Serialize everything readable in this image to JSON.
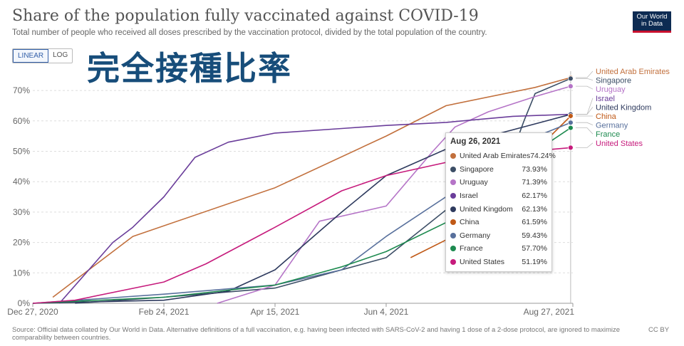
{
  "header": {
    "title": "Share of the population fully vaccinated against COVID-19",
    "subtitle": "Total number of people who received all doses prescribed by the vaccination protocol, divided by the total population of the country."
  },
  "logo": {
    "line1": "Our World",
    "line2": "in Data"
  },
  "controls": {
    "linear_label": "LINEAR",
    "log_label": "LOG",
    "active": "LINEAR"
  },
  "overlay_text": "完全接種比率",
  "footer": {
    "source": "Source: Official data collated by Our World in Data. Alternative definitions of a full vaccination, e.g. having been infected with SARS-CoV-2 and having 1 dose of a 2-dose protocol, are ignored to maximize comparability between countries.",
    "license": "CC BY"
  },
  "tooltip": {
    "date": "Aug 26, 2021",
    "rows": [
      {
        "name": "United Arab Emirates",
        "value": "74.24%",
        "color": "#c2703d"
      },
      {
        "name": "Singapore",
        "value": "73.93%",
        "color": "#3c4e66"
      },
      {
        "name": "Uruguay",
        "value": "71.39%",
        "color": "#b574c7"
      },
      {
        "name": "Israel",
        "value": "62.17%",
        "color": "#6a3d9a"
      },
      {
        "name": "United Kingdom",
        "value": "62.13%",
        "color": "#2e3a5e"
      },
      {
        "name": "China",
        "value": "61.59%",
        "color": "#c05917"
      },
      {
        "name": "Germany",
        "value": "59.43%",
        "color": "#58709c"
      },
      {
        "name": "France",
        "value": "57.70%",
        "color": "#1d8a4f"
      },
      {
        "name": "United States",
        "value": "51.19%",
        "color": "#c61b7c"
      }
    ]
  },
  "chart_data": {
    "type": "line",
    "title": "Share of the population fully vaccinated against COVID-19",
    "xlabel": "",
    "ylabel": "",
    "x_ticks": [
      "Dec 27, 2020",
      "Feb 24, 2021",
      "Apr 15, 2021",
      "Jun 4, 2021",
      "Aug 27, 2021"
    ],
    "x_range": [
      "2020-12-27",
      "2021-08-27"
    ],
    "ylim": [
      0,
      74
    ],
    "y_ticks": [
      "0%",
      "10%",
      "20%",
      "30%",
      "40%",
      "50%",
      "60%",
      "70%"
    ],
    "grid": "horizontal-dashed",
    "legend": "right-end-labels",
    "series": [
      {
        "name": "United Arab Emirates",
        "color": "#c2703d",
        "x": [
          "2021-01-05",
          "2021-02-10",
          "2021-04-15",
          "2021-06-04",
          "2021-07-01",
          "2021-08-10",
          "2021-08-26"
        ],
        "y": [
          2,
          22,
          38,
          55,
          65,
          71,
          74.24
        ]
      },
      {
        "name": "Singapore",
        "color": "#3c4e66",
        "x": [
          "2021-01-15",
          "2021-02-24",
          "2021-04-15",
          "2021-06-04",
          "2021-07-10",
          "2021-07-30",
          "2021-08-05",
          "2021-08-10",
          "2021-08-26"
        ],
        "y": [
          0,
          2,
          5,
          15,
          36,
          48,
          60,
          69,
          73.93
        ]
      },
      {
        "name": "Uruguay",
        "color": "#b574c7",
        "x": [
          "2021-03-20",
          "2021-04-15",
          "2021-05-05",
          "2021-06-04",
          "2021-06-25",
          "2021-07-05",
          "2021-07-20",
          "2021-08-10",
          "2021-08-26"
        ],
        "y": [
          0,
          6,
          27,
          32,
          50,
          58,
          63,
          68,
          71.39
        ]
      },
      {
        "name": "Israel",
        "color": "#6a3d9a",
        "x": [
          "2021-01-08",
          "2021-01-20",
          "2021-02-01",
          "2021-02-10",
          "2021-02-24",
          "2021-03-10",
          "2021-03-25",
          "2021-04-15",
          "2021-05-15",
          "2021-06-04",
          "2021-07-01",
          "2021-07-31",
          "2021-08-26"
        ],
        "y": [
          0,
          10,
          20,
          25,
          35,
          48,
          53,
          56,
          57.5,
          58.5,
          59.5,
          61.5,
          62.17
        ]
      },
      {
        "name": "United Kingdom",
        "color": "#2e3a5e",
        "x": [
          "2020-12-27",
          "2021-02-24",
          "2021-03-25",
          "2021-04-15",
          "2021-05-15",
          "2021-06-04",
          "2021-07-05",
          "2021-08-26"
        ],
        "y": [
          0,
          1,
          4,
          11,
          30,
          42,
          52,
          62.13
        ]
      },
      {
        "name": "China",
        "color": "#c05917",
        "x": [
          "2021-06-15",
          "2021-07-15",
          "2021-07-25",
          "2021-08-10",
          "2021-08-26"
        ],
        "y": [
          15,
          26,
          35,
          50,
          61.59
        ]
      },
      {
        "name": "Germany",
        "color": "#58709c",
        "x": [
          "2020-12-27",
          "2021-02-24",
          "2021-04-15",
          "2021-05-15",
          "2021-06-04",
          "2021-07-05",
          "2021-07-25",
          "2021-08-26"
        ],
        "y": [
          0,
          3,
          6,
          11,
          22,
          37,
          50,
          59.43
        ]
      },
      {
        "name": "France",
        "color": "#1d8a4f",
        "x": [
          "2020-12-27",
          "2021-02-24",
          "2021-04-15",
          "2021-05-15",
          "2021-06-04",
          "2021-07-05",
          "2021-07-25",
          "2021-08-26"
        ],
        "y": [
          0,
          2,
          6,
          12,
          17,
          28,
          42,
          57.7
        ]
      },
      {
        "name": "United States",
        "color": "#c61b7c",
        "x": [
          "2020-12-27",
          "2021-01-15",
          "2021-02-24",
          "2021-03-15",
          "2021-04-15",
          "2021-05-15",
          "2021-06-04",
          "2021-07-05",
          "2021-07-31",
          "2021-08-26"
        ],
        "y": [
          0,
          1,
          7,
          13,
          25,
          37,
          42,
          47,
          49.5,
          51.19
        ]
      }
    ],
    "end_labels": [
      {
        "name": "United Arab Emirates",
        "color": "#c2703d"
      },
      {
        "name": "Singapore",
        "color": "#3c4e66"
      },
      {
        "name": "Uruguay",
        "color": "#b574c7"
      },
      {
        "name": "Israel",
        "color": "#6a3d9a"
      },
      {
        "name": "United Kingdom",
        "color": "#2e3a5e"
      },
      {
        "name": "China",
        "color": "#c05917"
      },
      {
        "name": "Germany",
        "color": "#58709c"
      },
      {
        "name": "France",
        "color": "#1d8a4f"
      },
      {
        "name": "United States",
        "color": "#c61b7c"
      }
    ]
  }
}
